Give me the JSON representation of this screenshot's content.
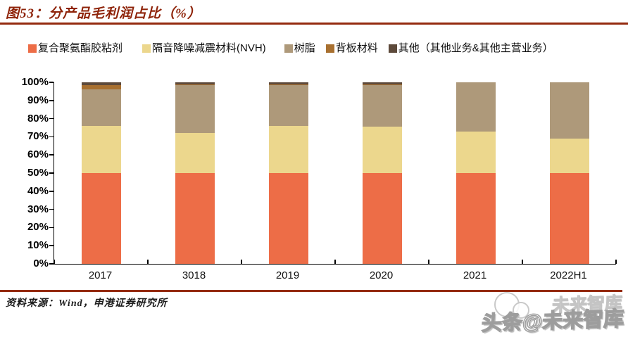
{
  "header": {
    "title": "图53：分产品毛利润占比（%）"
  },
  "footer": {
    "source": "资料来源：Wind，申港证券研究所"
  },
  "watermark": {
    "ghost_text": "未来智库",
    "main_text": "头条@未来智库"
  },
  "colors": {
    "accent_red": "#942A0F",
    "axis": "#000000",
    "background": "#FFFFFF"
  },
  "chart_data": {
    "type": "bar",
    "stacked": true,
    "title": "分产品毛利润占比（%）",
    "categories": [
      "2017",
      "3018",
      "2019",
      "2020",
      "2021",
      "2022H1"
    ],
    "series": [
      {
        "name": "复合聚氨酯胶粘剂",
        "color": "#ED6D47",
        "values": [
          50,
          50,
          50,
          50,
          50,
          50
        ]
      },
      {
        "name": "隔音降噪减震材料(NVH)",
        "color": "#ECD78D",
        "values": [
          26,
          22,
          26,
          25.5,
          23,
          19
        ]
      },
      {
        "name": "树脂",
        "color": "#AE997A",
        "values": [
          20,
          26.5,
          22.5,
          23,
          27,
          31
        ]
      },
      {
        "name": "背板材料",
        "color": "#A87030",
        "values": [
          2.5,
          0.5,
          0.5,
          0.5,
          0,
          0
        ]
      },
      {
        "name": "其他（其他业务&其他主营业务）",
        "color": "#5D4A3B",
        "values": [
          1.5,
          1,
          1,
          1,
          0,
          0
        ]
      }
    ],
    "ylim": [
      0,
      100
    ],
    "y_ticks": [
      "0%",
      "10%",
      "20%",
      "30%",
      "40%",
      "50%",
      "60%",
      "70%",
      "80%",
      "90%",
      "100%"
    ],
    "grid": false,
    "legend_position": "top"
  }
}
